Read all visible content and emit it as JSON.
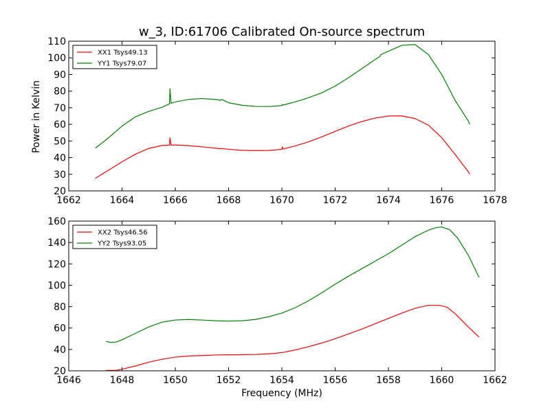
{
  "chart_data": [
    {
      "type": "line",
      "title": "w_3, ID:61706 Calibrated On-source spectrum",
      "xlabel": "",
      "ylabel": "Power in Kelvin",
      "xlim": [
        1662,
        1678
      ],
      "ylim": [
        20,
        110
      ],
      "xticks": [
        1662,
        1664,
        1666,
        1668,
        1670,
        1672,
        1674,
        1676,
        1678
      ],
      "yticks": [
        20,
        30,
        40,
        50,
        60,
        70,
        80,
        90,
        100,
        110
      ],
      "legend": "top-left",
      "series": [
        {
          "name": "XX1 Tsys49.13",
          "color": "#ff0000",
          "x": [
            1663.0,
            1663.5,
            1664.0,
            1664.5,
            1665.0,
            1665.5,
            1665.78,
            1665.8,
            1665.84,
            1666.0,
            1666.5,
            1667.0,
            1667.5,
            1667.7,
            1667.75,
            1668.0,
            1668.5,
            1669.0,
            1669.5,
            1670.0,
            1670.02,
            1670.05,
            1670.5,
            1671.0,
            1671.5,
            1672.0,
            1672.5,
            1673.0,
            1673.5,
            1674.0,
            1674.5,
            1675.0,
            1675.5,
            1676.0,
            1676.5,
            1677.0,
            1677.05
          ],
          "y": [
            27.6,
            32.5,
            37.5,
            42.0,
            45.5,
            47.3,
            47.5,
            52.0,
            47.5,
            47.6,
            47.2,
            46.5,
            45.7,
            45.4,
            45.5,
            45.0,
            44.4,
            44.2,
            44.3,
            45.0,
            46.5,
            45.2,
            47.0,
            49.5,
            52.5,
            55.8,
            59.0,
            61.7,
            63.8,
            65.0,
            65.1,
            63.5,
            59.5,
            52.0,
            42.0,
            31.5,
            30.0
          ],
          "data_labels": []
        },
        {
          "name": "YY1 Tsys79.07",
          "color": "#008000",
          "x": [
            1663.0,
            1663.5,
            1664.0,
            1664.5,
            1665.0,
            1665.5,
            1665.78,
            1665.8,
            1665.84,
            1666.0,
            1666.5,
            1667.0,
            1667.5,
            1667.7,
            1667.75,
            1668.0,
            1668.5,
            1669.0,
            1669.5,
            1670.0,
            1670.02,
            1670.05,
            1670.5,
            1671.0,
            1671.5,
            1672.0,
            1672.5,
            1673.0,
            1673.5,
            1673.68,
            1673.7,
            1674.0,
            1674.5,
            1675.0,
            1675.5,
            1676.0,
            1676.5,
            1677.0,
            1677.05
          ],
          "y": [
            45.7,
            52.0,
            59.0,
            64.5,
            67.8,
            70.3,
            72.3,
            81.5,
            72.6,
            73.5,
            75.0,
            75.5,
            75.0,
            74.5,
            75.0,
            73.0,
            71.5,
            70.8,
            70.7,
            71.3,
            72.0,
            71.6,
            73.5,
            76.0,
            79.0,
            83.0,
            88.0,
            93.5,
            99.0,
            100.8,
            101.8,
            104.0,
            107.5,
            108.0,
            102.0,
            90.0,
            74.5,
            62.0,
            60.0
          ],
          "data_labels": []
        }
      ]
    },
    {
      "type": "line",
      "title": "",
      "xlabel": "Frequency (MHz)",
      "ylabel": "",
      "xlim": [
        1646,
        1662
      ],
      "ylim": [
        20,
        160
      ],
      "xticks": [
        1646,
        1648,
        1650,
        1652,
        1654,
        1656,
        1658,
        1660,
        1662
      ],
      "yticks": [
        20,
        40,
        60,
        80,
        100,
        120,
        140,
        160
      ],
      "legend": "top-left",
      "series": [
        {
          "name": "XX2 Tsys46.56",
          "color": "#ff0000",
          "x": [
            1647.4,
            1647.8,
            1648.0,
            1648.5,
            1649.0,
            1649.5,
            1650.0,
            1650.5,
            1651.0,
            1651.5,
            1652.0,
            1652.5,
            1653.0,
            1653.5,
            1654.0,
            1654.5,
            1655.0,
            1655.5,
            1656.0,
            1656.5,
            1657.0,
            1657.5,
            1658.0,
            1658.5,
            1659.0,
            1659.5,
            1659.9,
            1660.2,
            1660.5,
            1661.0,
            1661.4
          ],
          "y": [
            20.3,
            20.5,
            21.5,
            24.5,
            28.0,
            30.8,
            32.8,
            33.8,
            34.3,
            34.8,
            35.0,
            35.1,
            35.3,
            35.8,
            37.0,
            39.5,
            42.5,
            46.0,
            50.0,
            54.5,
            59.0,
            64.0,
            69.0,
            74.0,
            78.5,
            81.3,
            81.3,
            79.5,
            73.5,
            61.0,
            51.5
          ],
          "data_labels": []
        },
        {
          "name": "YY2 Tsys93.05",
          "color": "#008000",
          "x": [
            1647.4,
            1647.6,
            1647.8,
            1648.0,
            1648.5,
            1649.0,
            1649.5,
            1650.0,
            1650.5,
            1651.0,
            1651.5,
            1652.0,
            1652.5,
            1653.0,
            1653.5,
            1654.0,
            1654.5,
            1655.0,
            1655.5,
            1656.0,
            1656.5,
            1657.0,
            1657.5,
            1658.0,
            1658.5,
            1659.0,
            1659.5,
            1659.8,
            1660.0,
            1660.3,
            1660.6,
            1661.0,
            1661.4
          ],
          "y": [
            47.5,
            46.5,
            47.0,
            49.0,
            55.0,
            61.0,
            65.5,
            67.5,
            68.0,
            67.5,
            66.8,
            66.5,
            66.8,
            68.0,
            70.5,
            74.0,
            79.0,
            85.5,
            93.0,
            101.0,
            108.5,
            115.5,
            122.5,
            129.5,
            137.5,
            145.5,
            151.5,
            154.0,
            154.5,
            152.0,
            144.0,
            128.0,
            107.5
          ],
          "data_labels": []
        }
      ]
    }
  ]
}
